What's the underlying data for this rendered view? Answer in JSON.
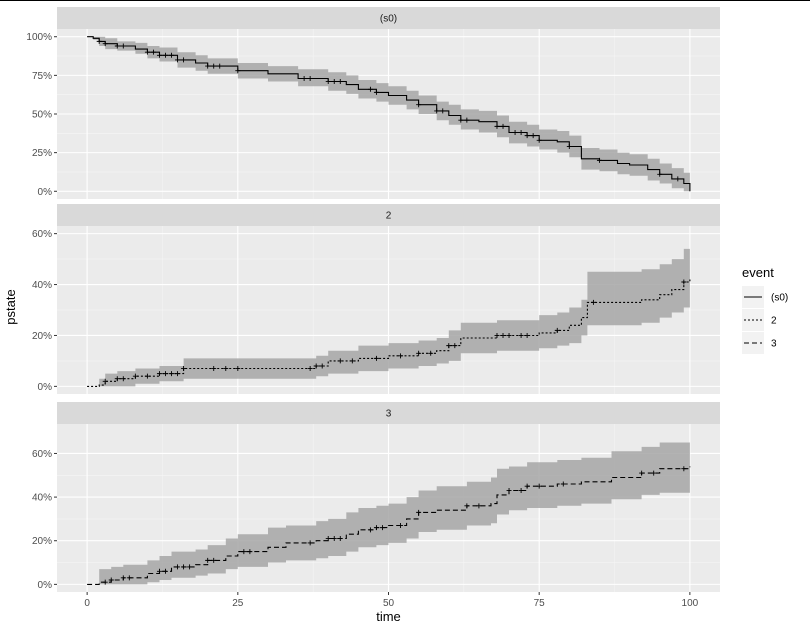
{
  "chart_data": {
    "type": "line",
    "xlabel": "time",
    "ylabel": "pstate",
    "x_ticks": [
      0,
      25,
      50,
      75,
      100
    ],
    "x_tick_labels": [
      "0",
      "25",
      "50",
      "75",
      "100"
    ],
    "xlim": [
      -5,
      105
    ],
    "legend": {
      "title": "event",
      "position": "right",
      "entries": [
        {
          "label": "(s0)",
          "linetype": "solid"
        },
        {
          "label": "2",
          "linetype": "dotted"
        },
        {
          "label": "3",
          "linetype": "dashed"
        }
      ]
    },
    "band_color": "#a6a6a6",
    "line_color": "#000000",
    "panel_background": "#ebebeb",
    "strip_background": "#d9d9d9",
    "panels": [
      {
        "strip": "(s0)",
        "linetype": "solid",
        "ylim": [
          -0.05,
          1.05
        ],
        "y_ticks": [
          0,
          0.25,
          0.5,
          0.75,
          1.0
        ],
        "y_tick_labels": [
          "0%",
          "25%",
          "50%",
          "75%",
          "100%"
        ],
        "series": [
          [
            0,
            1.0,
            1.0,
            1.0
          ],
          [
            1,
            0.99,
            1.0,
            0.98
          ],
          [
            2,
            0.97,
            1.0,
            0.94
          ],
          [
            3,
            0.955,
            0.99,
            0.92
          ],
          [
            5,
            0.94,
            0.97,
            0.91
          ],
          [
            8,
            0.92,
            0.96,
            0.89
          ],
          [
            10,
            0.9,
            0.94,
            0.86
          ],
          [
            12,
            0.88,
            0.93,
            0.84
          ],
          [
            15,
            0.85,
            0.9,
            0.8
          ],
          [
            18,
            0.83,
            0.88,
            0.78
          ],
          [
            20,
            0.81,
            0.86,
            0.76
          ],
          [
            25,
            0.78,
            0.83,
            0.73
          ],
          [
            30,
            0.76,
            0.81,
            0.71
          ],
          [
            35,
            0.73,
            0.79,
            0.68
          ],
          [
            40,
            0.71,
            0.77,
            0.65
          ],
          [
            43,
            0.69,
            0.75,
            0.63
          ],
          [
            45,
            0.66,
            0.72,
            0.6
          ],
          [
            48,
            0.64,
            0.7,
            0.58
          ],
          [
            50,
            0.62,
            0.68,
            0.56
          ],
          [
            53,
            0.59,
            0.65,
            0.53
          ],
          [
            55,
            0.56,
            0.62,
            0.5
          ],
          [
            58,
            0.52,
            0.58,
            0.46
          ],
          [
            60,
            0.49,
            0.56,
            0.43
          ],
          [
            62,
            0.46,
            0.53,
            0.4
          ],
          [
            65,
            0.45,
            0.52,
            0.38
          ],
          [
            68,
            0.42,
            0.49,
            0.35
          ],
          [
            70,
            0.38,
            0.45,
            0.31
          ],
          [
            73,
            0.36,
            0.43,
            0.29
          ],
          [
            75,
            0.33,
            0.4,
            0.27
          ],
          [
            78,
            0.32,
            0.39,
            0.25
          ],
          [
            80,
            0.29,
            0.36,
            0.22
          ],
          [
            82,
            0.21,
            0.28,
            0.14
          ],
          [
            85,
            0.2,
            0.27,
            0.13
          ],
          [
            88,
            0.18,
            0.25,
            0.11
          ],
          [
            90,
            0.17,
            0.24,
            0.1
          ],
          [
            93,
            0.14,
            0.21,
            0.07
          ],
          [
            95,
            0.11,
            0.18,
            0.05
          ],
          [
            97,
            0.08,
            0.15,
            0.02
          ],
          [
            99,
            0.05,
            0.12,
            0.0
          ],
          [
            100,
            0.0,
            0.06,
            0.0
          ]
        ],
        "censor_times": [
          2,
          3,
          5,
          6,
          10,
          11,
          12,
          13,
          14,
          15,
          16,
          20,
          21,
          22,
          25,
          36,
          37,
          40,
          41,
          42,
          47,
          48,
          55,
          58,
          59,
          62,
          63,
          68,
          69,
          71,
          72,
          73,
          74,
          75,
          80,
          85,
          95,
          98
        ]
      },
      {
        "strip": "2",
        "linetype": "dotted",
        "ylim": [
          -0.03,
          0.63
        ],
        "y_ticks": [
          0,
          0.2,
          0.4,
          0.6
        ],
        "y_tick_labels": [
          "0%",
          "20%",
          "40%",
          "60%"
        ],
        "series": [
          [
            0,
            0.0,
            0.0,
            0.0
          ],
          [
            2,
            0.005,
            0.03,
            0.0
          ],
          [
            3,
            0.02,
            0.05,
            0.0
          ],
          [
            5,
            0.03,
            0.06,
            0.0
          ],
          [
            8,
            0.04,
            0.07,
            0.01
          ],
          [
            12,
            0.05,
            0.08,
            0.02
          ],
          [
            16,
            0.07,
            0.11,
            0.03
          ],
          [
            30,
            0.07,
            0.11,
            0.03
          ],
          [
            37,
            0.07,
            0.11,
            0.03
          ],
          [
            38,
            0.08,
            0.12,
            0.04
          ],
          [
            40,
            0.1,
            0.14,
            0.05
          ],
          [
            45,
            0.11,
            0.16,
            0.06
          ],
          [
            50,
            0.12,
            0.17,
            0.07
          ],
          [
            55,
            0.13,
            0.18,
            0.08
          ],
          [
            58,
            0.14,
            0.19,
            0.09
          ],
          [
            60,
            0.16,
            0.22,
            0.1
          ],
          [
            62,
            0.19,
            0.25,
            0.13
          ],
          [
            68,
            0.2,
            0.26,
            0.14
          ],
          [
            72,
            0.2,
            0.26,
            0.14
          ],
          [
            75,
            0.21,
            0.28,
            0.15
          ],
          [
            78,
            0.22,
            0.29,
            0.16
          ],
          [
            80,
            0.24,
            0.31,
            0.17
          ],
          [
            82,
            0.27,
            0.34,
            0.2
          ],
          [
            83,
            0.33,
            0.45,
            0.24
          ],
          [
            87,
            0.33,
            0.45,
            0.24
          ],
          [
            92,
            0.34,
            0.46,
            0.25
          ],
          [
            95,
            0.36,
            0.48,
            0.27
          ],
          [
            97,
            0.38,
            0.5,
            0.29
          ],
          [
            99,
            0.41,
            0.54,
            0.31
          ],
          [
            100,
            0.42,
            0.54,
            0.31
          ]
        ],
        "censor_times": [
          3,
          5,
          6,
          8,
          10,
          12,
          13,
          14,
          15,
          16,
          21,
          23,
          25,
          37,
          38,
          39,
          42,
          44,
          48,
          52,
          55,
          57,
          60,
          61,
          68,
          69,
          70,
          72,
          73,
          78,
          84,
          99
        ]
      },
      {
        "strip": "3",
        "linetype": "dashed",
        "ylim": [
          -0.035,
          0.735
        ],
        "y_ticks": [
          0,
          0.2,
          0.4,
          0.6
        ],
        "y_tick_labels": [
          "0%",
          "20%",
          "40%",
          "60%"
        ],
        "series": [
          [
            0,
            0.0,
            0.0,
            0.0
          ],
          [
            2,
            0.01,
            0.07,
            0.0
          ],
          [
            4,
            0.02,
            0.08,
            0.0
          ],
          [
            6,
            0.03,
            0.09,
            0.0
          ],
          [
            10,
            0.05,
            0.11,
            0.01
          ],
          [
            12,
            0.06,
            0.13,
            0.02
          ],
          [
            14,
            0.08,
            0.15,
            0.03
          ],
          [
            18,
            0.09,
            0.16,
            0.04
          ],
          [
            20,
            0.11,
            0.18,
            0.05
          ],
          [
            23,
            0.13,
            0.21,
            0.07
          ],
          [
            25,
            0.15,
            0.23,
            0.08
          ],
          [
            30,
            0.17,
            0.26,
            0.1
          ],
          [
            33,
            0.19,
            0.27,
            0.11
          ],
          [
            38,
            0.2,
            0.29,
            0.12
          ],
          [
            40,
            0.21,
            0.3,
            0.13
          ],
          [
            43,
            0.23,
            0.33,
            0.15
          ],
          [
            45,
            0.25,
            0.35,
            0.17
          ],
          [
            48,
            0.26,
            0.36,
            0.18
          ],
          [
            50,
            0.27,
            0.37,
            0.19
          ],
          [
            53,
            0.3,
            0.4,
            0.21
          ],
          [
            55,
            0.33,
            0.43,
            0.24
          ],
          [
            58,
            0.34,
            0.45,
            0.25
          ],
          [
            63,
            0.36,
            0.47,
            0.27
          ],
          [
            67,
            0.37,
            0.49,
            0.28
          ],
          [
            68,
            0.41,
            0.53,
            0.32
          ],
          [
            70,
            0.43,
            0.54,
            0.34
          ],
          [
            73,
            0.45,
            0.56,
            0.35
          ],
          [
            78,
            0.46,
            0.57,
            0.36
          ],
          [
            82,
            0.47,
            0.58,
            0.37
          ],
          [
            87,
            0.49,
            0.61,
            0.39
          ],
          [
            92,
            0.51,
            0.63,
            0.41
          ],
          [
            95,
            0.53,
            0.65,
            0.42
          ],
          [
            100,
            0.54,
            0.66,
            0.43
          ]
        ],
        "censor_times": [
          3,
          4,
          6,
          7,
          12,
          13,
          15,
          16,
          17,
          20,
          21,
          26,
          27,
          37,
          40,
          41,
          42,
          47,
          48,
          49,
          52,
          55,
          63,
          65,
          70,
          72,
          73,
          75,
          79,
          92,
          94,
          99
        ]
      }
    ]
  }
}
